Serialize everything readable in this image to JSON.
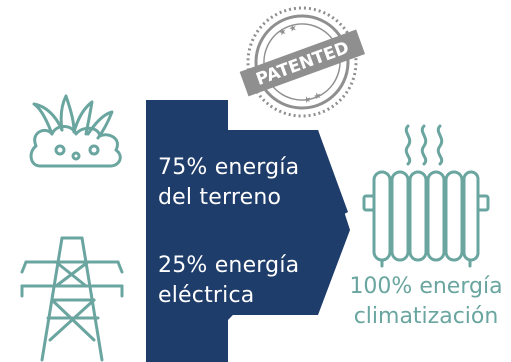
{
  "colors": {
    "teal": "#6aa5a0",
    "navy": "#1f3d6a",
    "stamp_gray": "#8f8f8f",
    "white": "#ffffff"
  },
  "icons": {
    "ground": "grass-soil-icon",
    "power": "power-tower-icon",
    "radiator": "radiator-heat-icon",
    "stamp": "patented-stamp-icon"
  },
  "stamp": {
    "label": "PATENTED"
  },
  "flows": [
    {
      "line1": "75% energía",
      "line2": "del terreno"
    },
    {
      "line1": "25% energía",
      "line2": "eléctrica"
    }
  ],
  "result": {
    "line1": "100% energía",
    "line2": "climatización"
  }
}
